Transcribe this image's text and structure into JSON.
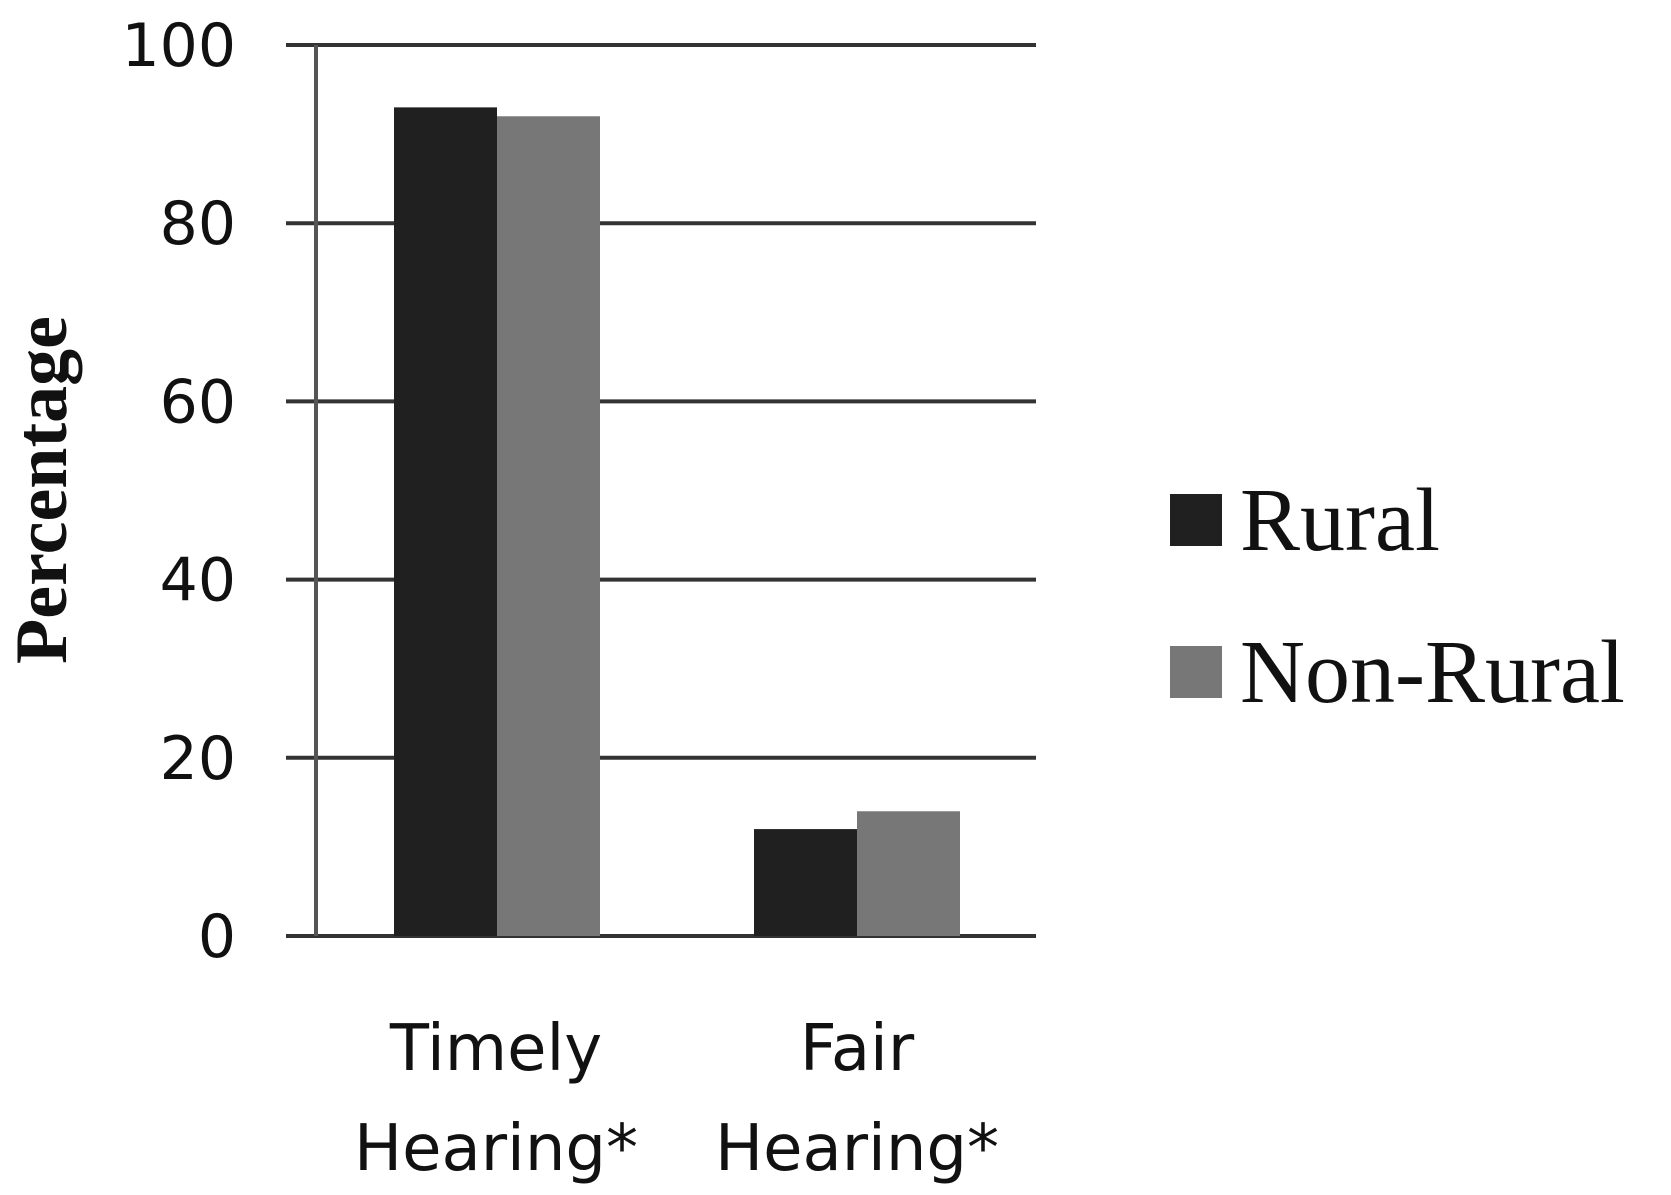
{
  "chart_data": {
    "type": "bar",
    "categories": [
      [
        "Timely",
        "Hearing*"
      ],
      [
        "Fair",
        "Hearing*"
      ]
    ],
    "series": [
      {
        "name": "Rural",
        "values": [
          93,
          12
        ],
        "color": "#202020"
      },
      {
        "name": "Non-Rural",
        "values": [
          92,
          14
        ],
        "color": "#777777"
      }
    ],
    "ylabel": "Percentage",
    "ylim": [
      0,
      100
    ],
    "yticks": [
      "0",
      "20",
      "40",
      "60",
      "80",
      "100"
    ],
    "grid": true,
    "legend": "right"
  }
}
